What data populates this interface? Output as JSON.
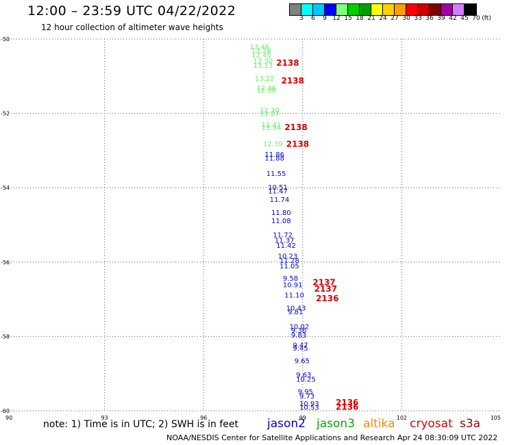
{
  "header": {
    "title": "12:00 – 23:59 UTC 04/22/2022",
    "subtitle": "12 hour collection of altimeter wave heights"
  },
  "legend": {
    "unit": "(ft)",
    "bins": [
      {
        "label": "3",
        "color": "#808080"
      },
      {
        "label": "6",
        "color": "#00ffff"
      },
      {
        "label": "9",
        "color": "#00c8ff"
      },
      {
        "label": "12",
        "color": "#0000ff"
      },
      {
        "label": "15",
        "color": "#80ff80"
      },
      {
        "label": "18",
        "color": "#00d000"
      },
      {
        "label": "21",
        "color": "#00a000"
      },
      {
        "label": "24",
        "color": "#ffff00"
      },
      {
        "label": "27",
        "color": "#ffd000"
      },
      {
        "label": "30",
        "color": "#ffa000"
      },
      {
        "label": "33",
        "color": "#ff0000"
      },
      {
        "label": "36",
        "color": "#d00000"
      },
      {
        "label": "39",
        "color": "#800000"
      },
      {
        "label": "42",
        "color": "#a000a0"
      },
      {
        "label": "45",
        "color": "#d080ff"
      },
      {
        "label": "70",
        "color": "#000000"
      }
    ]
  },
  "axes": {
    "lon_ticks": [
      "90",
      "93",
      "96",
      "99",
      "102",
      "105"
    ],
    "lat_ticks": [
      "-50",
      "-52",
      "-54",
      "-56",
      "-58",
      "-60"
    ]
  },
  "colors": {
    "jason3": "#66ee66",
    "jason2": "#0000cc",
    "cryosat": "#dd0000",
    "altika": "#ff8800",
    "s3a": "#990000",
    "jason3_label": "#00aa00"
  },
  "map_data": {
    "jason3_labels": [
      {
        "lon": 97.4,
        "lat": -50.28,
        "text": "13.46"
      },
      {
        "lon": 97.45,
        "lat": -50.38,
        "text": "13.28"
      },
      {
        "lon": 97.45,
        "lat": -50.5,
        "text": "12.45"
      },
      {
        "lon": 97.5,
        "lat": -50.65,
        "text": "12.30"
      },
      {
        "lon": 97.5,
        "lat": -50.77,
        "text": "13.13"
      },
      {
        "lon": 97.55,
        "lat": -51.12,
        "text": "13.22"
      },
      {
        "lon": 97.6,
        "lat": -51.38,
        "text": "12.36"
      },
      {
        "lon": 97.6,
        "lat": -51.45,
        "text": "12.56"
      },
      {
        "lon": 97.7,
        "lat": -51.98,
        "text": "12.30"
      },
      {
        "lon": 97.7,
        "lat": -52.07,
        "text": "12.27"
      },
      {
        "lon": 97.75,
        "lat": -52.37,
        "text": "12.41"
      },
      {
        "lon": 97.75,
        "lat": -52.45,
        "text": "13.84"
      },
      {
        "lon": 97.8,
        "lat": -52.88,
        "text": "12.39"
      }
    ],
    "cryosat_labels": [
      {
        "lon": 98.2,
        "lat": -50.72,
        "text": "2138"
      },
      {
        "lon": 98.35,
        "lat": -51.2,
        "text": "2138"
      },
      {
        "lon": 98.45,
        "lat": -52.45,
        "text": "2138"
      },
      {
        "lon": 98.5,
        "lat": -52.9,
        "text": "2138"
      },
      {
        "lon": 99.3,
        "lat": -56.62,
        "text": "2137"
      },
      {
        "lon": 99.35,
        "lat": -56.8,
        "text": "2137"
      },
      {
        "lon": 99.4,
        "lat": -57.05,
        "text": "2136"
      },
      {
        "lon": 100.0,
        "lat": -59.85,
        "text": "2136"
      },
      {
        "lon": 100.0,
        "lat": -59.97,
        "text": "2136"
      }
    ],
    "jason2_labels": [
      {
        "lon": 97.85,
        "lat": -53.17,
        "text": "11.86"
      },
      {
        "lon": 97.85,
        "lat": -53.27,
        "text": "11.88"
      },
      {
        "lon": 97.9,
        "lat": -53.68,
        "text": "11.55"
      },
      {
        "lon": 97.95,
        "lat": -54.05,
        "text": "10.51"
      },
      {
        "lon": 97.95,
        "lat": -54.15,
        "text": "11.47"
      },
      {
        "lon": 98.0,
        "lat": -54.38,
        "text": "11.74"
      },
      {
        "lon": 98.05,
        "lat": -54.73,
        "text": "11.80"
      },
      {
        "lon": 98.05,
        "lat": -54.95,
        "text": "11.08"
      },
      {
        "lon": 98.1,
        "lat": -55.33,
        "text": "11.72"
      },
      {
        "lon": 98.15,
        "lat": -55.48,
        "text": "11.37"
      },
      {
        "lon": 98.2,
        "lat": -55.62,
        "text": "11.42"
      },
      {
        "lon": 98.25,
        "lat": -55.9,
        "text": "10.23"
      },
      {
        "lon": 98.3,
        "lat": -56.02,
        "text": "11.28"
      },
      {
        "lon": 98.3,
        "lat": -56.17,
        "text": "11.05"
      },
      {
        "lon": 98.4,
        "lat": -56.5,
        "text": "9.58"
      },
      {
        "lon": 98.4,
        "lat": -56.68,
        "text": "10.91"
      },
      {
        "lon": 98.45,
        "lat": -56.95,
        "text": "11.10"
      },
      {
        "lon": 98.5,
        "lat": -57.3,
        "text": "10.43"
      },
      {
        "lon": 98.55,
        "lat": -57.4,
        "text": "9.81"
      },
      {
        "lon": 98.6,
        "lat": -57.8,
        "text": "10.02"
      },
      {
        "lon": 98.65,
        "lat": -57.9,
        "text": "9.36"
      },
      {
        "lon": 98.65,
        "lat": -58.03,
        "text": "9.83"
      },
      {
        "lon": 98.7,
        "lat": -58.3,
        "text": "9.47"
      },
      {
        "lon": 98.7,
        "lat": -58.38,
        "text": "9.45"
      },
      {
        "lon": 98.75,
        "lat": -58.72,
        "text": "9.65"
      },
      {
        "lon": 98.8,
        "lat": -59.1,
        "text": "9.63"
      },
      {
        "lon": 98.8,
        "lat": -59.22,
        "text": "10.25"
      },
      {
        "lon": 98.85,
        "lat": -59.55,
        "text": "9.95"
      },
      {
        "lon": 98.9,
        "lat": -59.67,
        "text": "9.73"
      },
      {
        "lon": 98.9,
        "lat": -59.87,
        "text": "10.93"
      },
      {
        "lon": 98.9,
        "lat": -59.97,
        "text": "10.53"
      }
    ]
  },
  "footer": {
    "note": "note:  1) Time is in UTC;  2) SWH is in feet",
    "sat_jason2": "jason2",
    "sat_jason3": "jason3",
    "sat_altika": "altika",
    "sat_cryosat": "cryosat",
    "sat_s3a": "s3a",
    "credit": "NOAA/NESDIS Center for Satellite Applications and Research",
    "timestamp": "Apr 24 08:30:09 UTC 2022"
  }
}
